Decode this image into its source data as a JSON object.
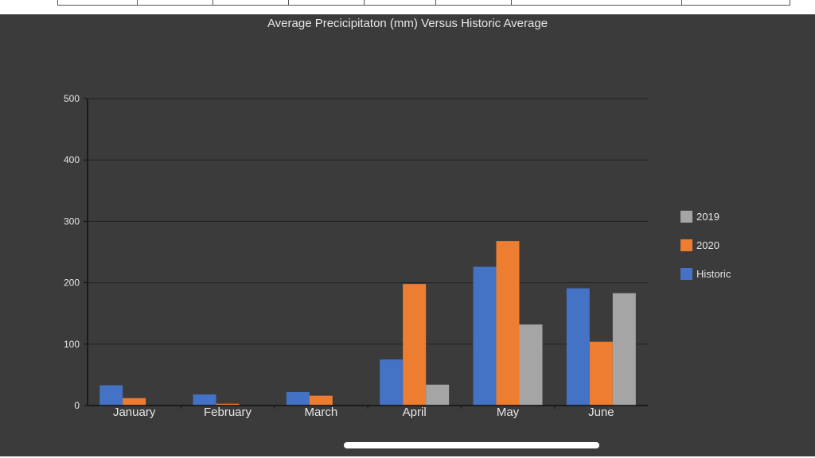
{
  "chart_data": {
    "type": "bar",
    "title": "Average Precicipitaton (mm) Versus Historic Average",
    "categories": [
      "January",
      "February",
      "March",
      "April",
      "May",
      "June"
    ],
    "series": [
      {
        "name": "Historic",
        "color": "#4472c4",
        "values": [
          33,
          18,
          22,
          75,
          226,
          191
        ]
      },
      {
        "name": "2020",
        "color": "#ed7d31",
        "values": [
          12,
          3,
          16,
          198,
          268,
          104
        ]
      },
      {
        "name": "2019",
        "color": "#a5a5a5",
        "values": [
          0,
          0,
          0,
          34,
          132,
          183
        ]
      }
    ],
    "ylim": [
      0,
      500
    ],
    "yticks": [
      0,
      100,
      200,
      300,
      400,
      500
    ],
    "grid": true,
    "legend_position": "right",
    "legend_order": [
      "2019",
      "2020",
      "Historic"
    ]
  },
  "colors": {
    "background": "#3b3b3b",
    "grid": "#222222",
    "text": "#e6e6e6"
  }
}
